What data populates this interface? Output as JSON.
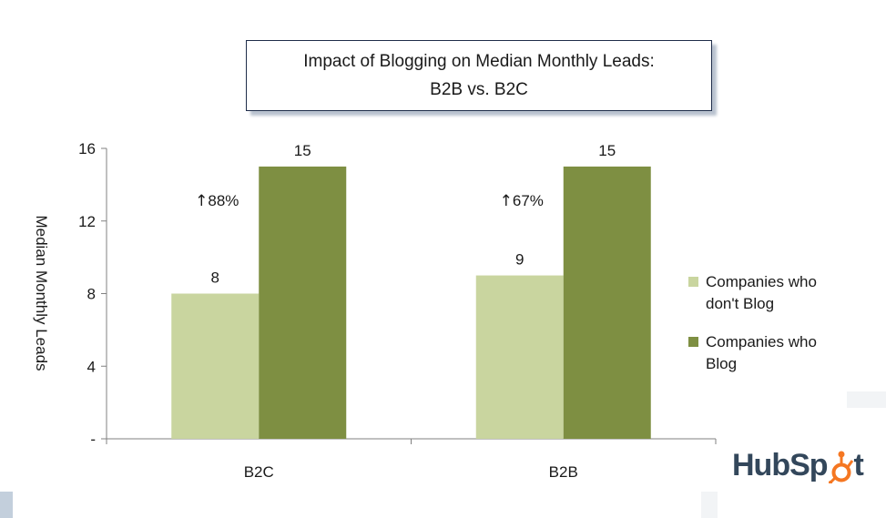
{
  "chart_data": {
    "type": "bar",
    "title_lines": [
      "Impact of Blogging on Median Monthly Leads:",
      "B2B vs. B2C"
    ],
    "xlabel": "",
    "ylabel": "Median Monthly Leads",
    "categories": [
      "B2C",
      "B2B"
    ],
    "ylim": [
      0,
      16
    ],
    "yticks": [
      {
        "value": 0,
        "label": "-"
      },
      {
        "value": 4,
        "label": "4"
      },
      {
        "value": 8,
        "label": "8"
      },
      {
        "value": 12,
        "label": "12"
      },
      {
        "value": 16,
        "label": "16"
      }
    ],
    "series": [
      {
        "name": "Companies who don't Blog",
        "values": [
          8,
          9
        ],
        "color": "#c9d59f"
      },
      {
        "name": "Companies who Blog",
        "values": [
          15,
          15
        ],
        "color": "#7e8f42"
      }
    ],
    "annotations": [
      {
        "category": "B2C",
        "arrow": "↑",
        "text": "88%"
      },
      {
        "category": "B2B",
        "arrow": "↑",
        "text": "67%"
      }
    ],
    "legend_position": "right",
    "grid": false
  },
  "legend": {
    "items": [
      {
        "line1": "Companies who",
        "line2": "don't Blog",
        "color": "#c9d59f"
      },
      {
        "line1": "Companies who",
        "line2": "Blog",
        "color": "#7e8f42"
      }
    ]
  },
  "brand": {
    "logo_text_left": "HubSp",
    "logo_text_right": "t",
    "logo_color": "#33475b",
    "sprocket_color": "#f57722"
  }
}
